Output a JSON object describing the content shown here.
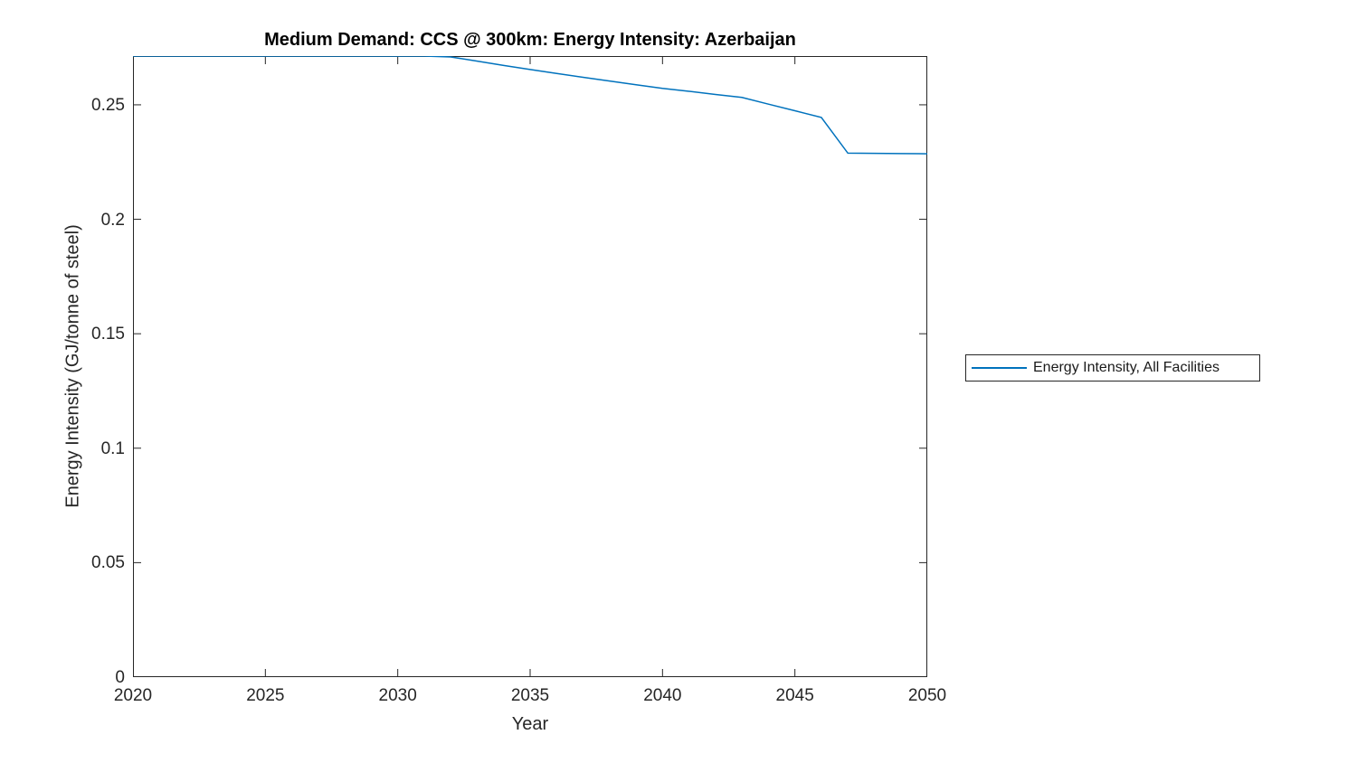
{
  "colors": {
    "background": "#ffffff",
    "axes": "#262626",
    "tick_text": "#262626",
    "title_text": "#000000",
    "legend_border": "#262626",
    "line": "#0072BD"
  },
  "chart_data": {
    "type": "line",
    "title": "Medium Demand: CCS @ 300km: Energy Intensity: Azerbaijan",
    "xlabel": "Year",
    "ylabel": "Energy Intensity (GJ/tonne of steel)",
    "xlim": [
      2020,
      2050
    ],
    "ylim": [
      0,
      0.2713
    ],
    "xticks": [
      2020,
      2025,
      2030,
      2035,
      2040,
      2045,
      2050
    ],
    "yticks": [
      0,
      0.05,
      0.1,
      0.15,
      0.2,
      0.25
    ],
    "ytick_labels": [
      "0",
      "0.05",
      "0.1",
      "0.15",
      "0.2",
      "0.25"
    ],
    "grid": false,
    "box": true,
    "tick_direction": "in",
    "legend": {
      "position": "right-outside",
      "entries": [
        {
          "label": "Energy Intensity, All Facilities",
          "color": "#0072BD"
        }
      ]
    },
    "series": [
      {
        "name": "Energy Intensity, All Facilities",
        "color": "#0072BD",
        "x": [
          2020,
          2021,
          2022,
          2023,
          2024,
          2025,
          2026,
          2027,
          2028,
          2029,
          2030,
          2031,
          2032,
          2033,
          2034,
          2035,
          2036,
          2037,
          2038,
          2039,
          2040,
          2041,
          2042,
          2043,
          2044,
          2045,
          2046,
          2047,
          2048,
          2049,
          2050
        ],
        "y": [
          0.2713,
          0.2713,
          0.2713,
          0.2713,
          0.2713,
          0.2713,
          0.2713,
          0.2713,
          0.2713,
          0.2713,
          0.2713,
          0.2713,
          0.2709,
          0.2691,
          0.2672,
          0.2654,
          0.2637,
          0.262,
          0.2604,
          0.2588,
          0.2572,
          0.2559,
          0.2545,
          0.2532,
          0.2503,
          0.2474,
          0.2445,
          0.2289,
          0.2288,
          0.2287,
          0.2286
        ]
      }
    ]
  }
}
